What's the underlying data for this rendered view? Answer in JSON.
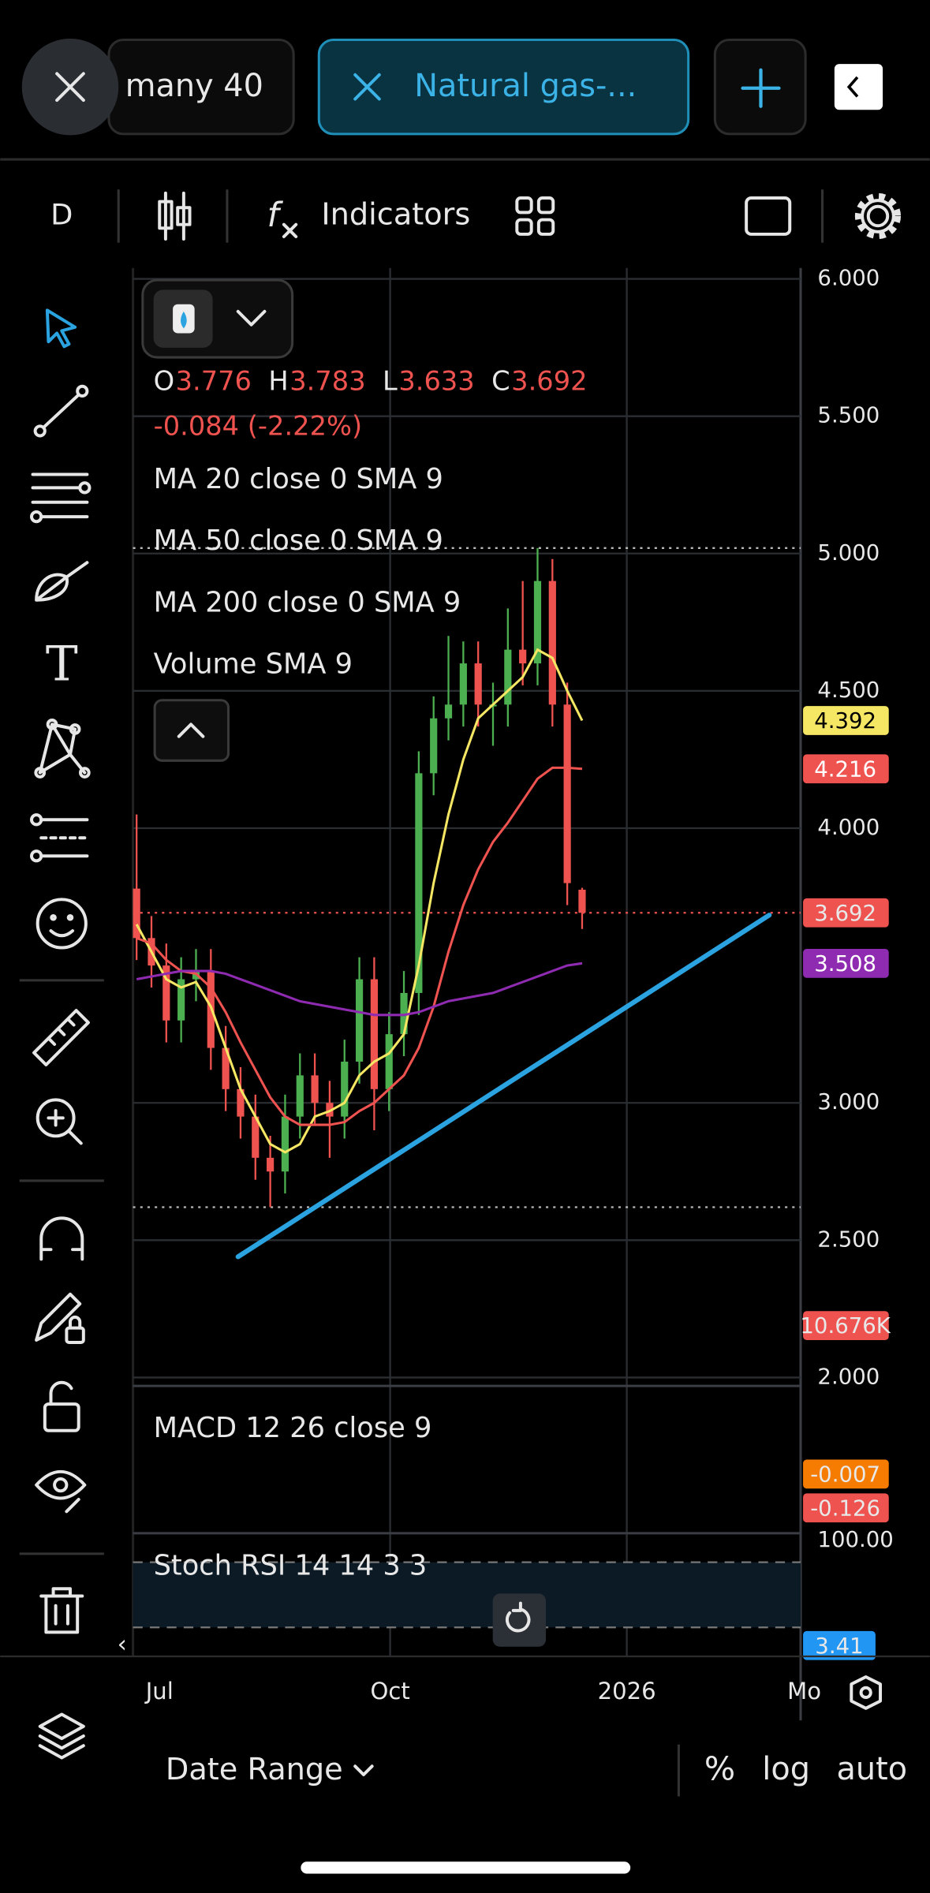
{
  "tabs": [
    "many 40",
    "Natural gas-..."
  ],
  "toolbar": {
    "interval": "D",
    "indicators": "Indicators"
  },
  "legend": {
    "ohlc_keys": [
      "O",
      "H",
      "L",
      "C"
    ],
    "change": "-0.084 (-2.22%)",
    "volume": "Volume SMA 9"
  },
  "chart_data": {
    "type": "candlestick",
    "open": [
      3.78,
      3.6,
      3.5,
      3.3,
      3.45,
      3.48,
      3.2,
      3.05,
      2.95,
      2.8,
      2.75,
      2.95,
      3.1,
      3.0,
      2.95,
      3.15,
      3.45,
      3.05,
      3.25,
      3.4,
      4.2,
      4.4,
      4.45,
      4.6,
      4.45,
      4.45,
      4.65,
      4.6,
      4.9,
      4.45,
      3.776
    ],
    "high": [
      4.05,
      3.68,
      3.58,
      3.53,
      3.56,
      3.56,
      3.28,
      3.13,
      3.03,
      2.88,
      3.03,
      3.18,
      3.18,
      3.08,
      3.23,
      3.53,
      3.53,
      3.33,
      3.48,
      4.28,
      4.48,
      4.7,
      4.68,
      4.68,
      4.53,
      4.8,
      4.9,
      5.02,
      4.98,
      4.53,
      3.783
    ],
    "low": [
      3.52,
      3.42,
      3.22,
      3.22,
      3.37,
      3.12,
      2.97,
      2.87,
      2.72,
      2.62,
      2.67,
      2.87,
      2.92,
      2.8,
      2.87,
      3.07,
      2.9,
      2.97,
      3.17,
      3.32,
      4.12,
      4.32,
      4.37,
      4.37,
      4.3,
      4.37,
      4.52,
      4.52,
      4.37,
      3.72,
      3.633
    ],
    "close": [
      3.6,
      3.5,
      3.3,
      3.45,
      3.48,
      3.2,
      3.05,
      2.95,
      2.8,
      2.75,
      2.95,
      3.1,
      3.0,
      2.95,
      3.15,
      3.45,
      3.05,
      3.25,
      3.4,
      4.2,
      4.4,
      4.45,
      4.6,
      4.45,
      4.45,
      4.65,
      4.6,
      4.9,
      4.45,
      3.8,
      3.692
    ],
    "up_color": "#4caf50",
    "down_color": "#ef5350",
    "ylim": [
      2,
      6
    ],
    "yticks": [
      {
        "value": 6,
        "label": "6.000"
      },
      {
        "value": 5.5,
        "label": "5.500"
      },
      {
        "value": 5,
        "label": "5.000"
      },
      {
        "value": 4.5,
        "label": "4.500"
      },
      {
        "value": 4,
        "label": "4.000"
      },
      {
        "value": 3,
        "label": "3.000"
      },
      {
        "value": 2.5,
        "label": "2.500"
      },
      {
        "value": 2,
        "label": "2.000"
      }
    ],
    "grid": true,
    "series": [
      {
        "name": "MA 20 close 0 SMA 9",
        "color": "#f5e663",
        "values": [
          3.65,
          3.55,
          3.45,
          3.42,
          3.44,
          3.35,
          3.2,
          3.05,
          2.95,
          2.85,
          2.82,
          2.85,
          2.95,
          2.97,
          3.0,
          3.1,
          3.15,
          3.18,
          3.25,
          3.5,
          3.8,
          4.05,
          4.25,
          4.4,
          4.45,
          4.5,
          4.55,
          4.65,
          4.62,
          4.5,
          4.392
        ]
      },
      {
        "name": "MA 50 close 0 SMA 9",
        "color": "#ef5350",
        "values": [
          3.6,
          3.58,
          3.52,
          3.48,
          3.47,
          3.42,
          3.33,
          3.22,
          3.12,
          3.02,
          2.95,
          2.92,
          2.92,
          2.92,
          2.93,
          2.97,
          3.0,
          3.05,
          3.1,
          3.2,
          3.35,
          3.55,
          3.72,
          3.85,
          3.95,
          4.02,
          4.1,
          4.18,
          4.22,
          4.22,
          4.216
        ]
      },
      {
        "name": "MA 200 close 0 SMA 9",
        "color": "#8e2bb0",
        "values": [
          3.45,
          3.46,
          3.47,
          3.48,
          3.48,
          3.48,
          3.47,
          3.45,
          3.43,
          3.41,
          3.39,
          3.37,
          3.36,
          3.35,
          3.34,
          3.33,
          3.32,
          3.32,
          3.32,
          3.33,
          3.35,
          3.37,
          3.38,
          3.39,
          3.4,
          3.42,
          3.44,
          3.46,
          3.48,
          3.5,
          3.508
        ]
      }
    ]
  },
  "time_axis": [
    "Jul",
    "Oct",
    "2026",
    "Mo"
  ],
  "panes": {
    "volume_value": "10.676K",
    "macd": {
      "name": "MACD 12 26 close 9",
      "labels": [
        "-0.007",
        "-0.126"
      ]
    },
    "stoch": {
      "name": "Stoch RSI 14 14 3 3",
      "labels": [
        "100.00",
        "3.41"
      ]
    }
  },
  "bottom_bar": {
    "date_range": "Date Range",
    "percent": "%",
    "log": "log",
    "auto": "auto"
  }
}
